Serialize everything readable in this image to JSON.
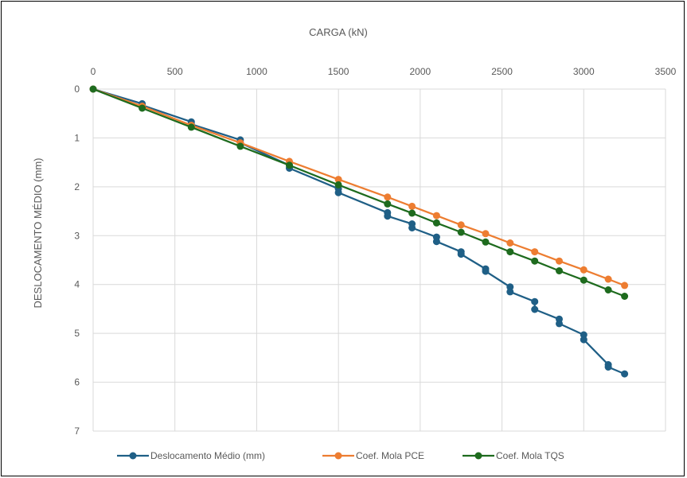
{
  "chart_data": {
    "type": "line",
    "title": "",
    "xlabel": "CARGA (kN)",
    "ylabel": "DESLOCAMENTO MÉDIO (mm)",
    "x_axis_position": "top",
    "y_axis_inverted": true,
    "xlim": [
      0,
      3500
    ],
    "ylim": [
      0,
      7
    ],
    "x_ticks": [
      "0",
      "500",
      "1000",
      "1500",
      "2000",
      "2500",
      "3000",
      "3500"
    ],
    "y_ticks": [
      "0",
      "1",
      "2",
      "3",
      "4",
      "5",
      "6",
      "7"
    ],
    "grid": true,
    "legend_position": "bottom",
    "series": [
      {
        "name": "Deslocamento Médio (mm)",
        "color": "#1f5f86",
        "points": [
          [
            0,
            0
          ],
          [
            300,
            0.3
          ],
          [
            300,
            0.33
          ],
          [
            600,
            0.67
          ],
          [
            600,
            0.72
          ],
          [
            900,
            1.04
          ],
          [
            900,
            1.1
          ],
          [
            1200,
            1.56
          ],
          [
            1200,
            1.62
          ],
          [
            1500,
            2.04
          ],
          [
            1500,
            2.12
          ],
          [
            1800,
            2.53
          ],
          [
            1800,
            2.6
          ],
          [
            1950,
            2.76
          ],
          [
            1950,
            2.84
          ],
          [
            2100,
            3.03
          ],
          [
            2100,
            3.12
          ],
          [
            2250,
            3.33
          ],
          [
            2250,
            3.38
          ],
          [
            2400,
            3.68
          ],
          [
            2400,
            3.73
          ],
          [
            2550,
            4.05
          ],
          [
            2550,
            4.15
          ],
          [
            2700,
            4.35
          ],
          [
            2700,
            4.51
          ],
          [
            2850,
            4.71
          ],
          [
            2850,
            4.8
          ],
          [
            3000,
            5.03
          ],
          [
            3000,
            5.13
          ],
          [
            3150,
            5.64
          ],
          [
            3150,
            5.69
          ],
          [
            3250,
            5.83
          ]
        ]
      },
      {
        "name": "Coef. Mola PCE",
        "color": "#ed7d31",
        "points": [
          [
            0,
            0
          ],
          [
            300,
            0.35
          ],
          [
            600,
            0.74
          ],
          [
            900,
            1.1
          ],
          [
            1200,
            1.48
          ],
          [
            1500,
            1.85
          ],
          [
            1800,
            2.21
          ],
          [
            1950,
            2.4
          ],
          [
            2100,
            2.59
          ],
          [
            2250,
            2.78
          ],
          [
            2400,
            2.96
          ],
          [
            2550,
            3.15
          ],
          [
            2700,
            3.33
          ],
          [
            2850,
            3.52
          ],
          [
            3000,
            3.7
          ],
          [
            3150,
            3.89
          ],
          [
            3250,
            4.02
          ]
        ]
      },
      {
        "name": "Coef. Mola TQS",
        "color": "#1e6b1e",
        "points": [
          [
            0,
            0
          ],
          [
            300,
            0.39
          ],
          [
            600,
            0.78
          ],
          [
            900,
            1.17
          ],
          [
            1200,
            1.56
          ],
          [
            1500,
            1.96
          ],
          [
            1800,
            2.35
          ],
          [
            1950,
            2.54
          ],
          [
            2100,
            2.74
          ],
          [
            2250,
            2.93
          ],
          [
            2400,
            3.13
          ],
          [
            2550,
            3.33
          ],
          [
            2700,
            3.52
          ],
          [
            2850,
            3.72
          ],
          [
            3000,
            3.91
          ],
          [
            3150,
            4.11
          ],
          [
            3250,
            4.24
          ]
        ]
      }
    ]
  }
}
